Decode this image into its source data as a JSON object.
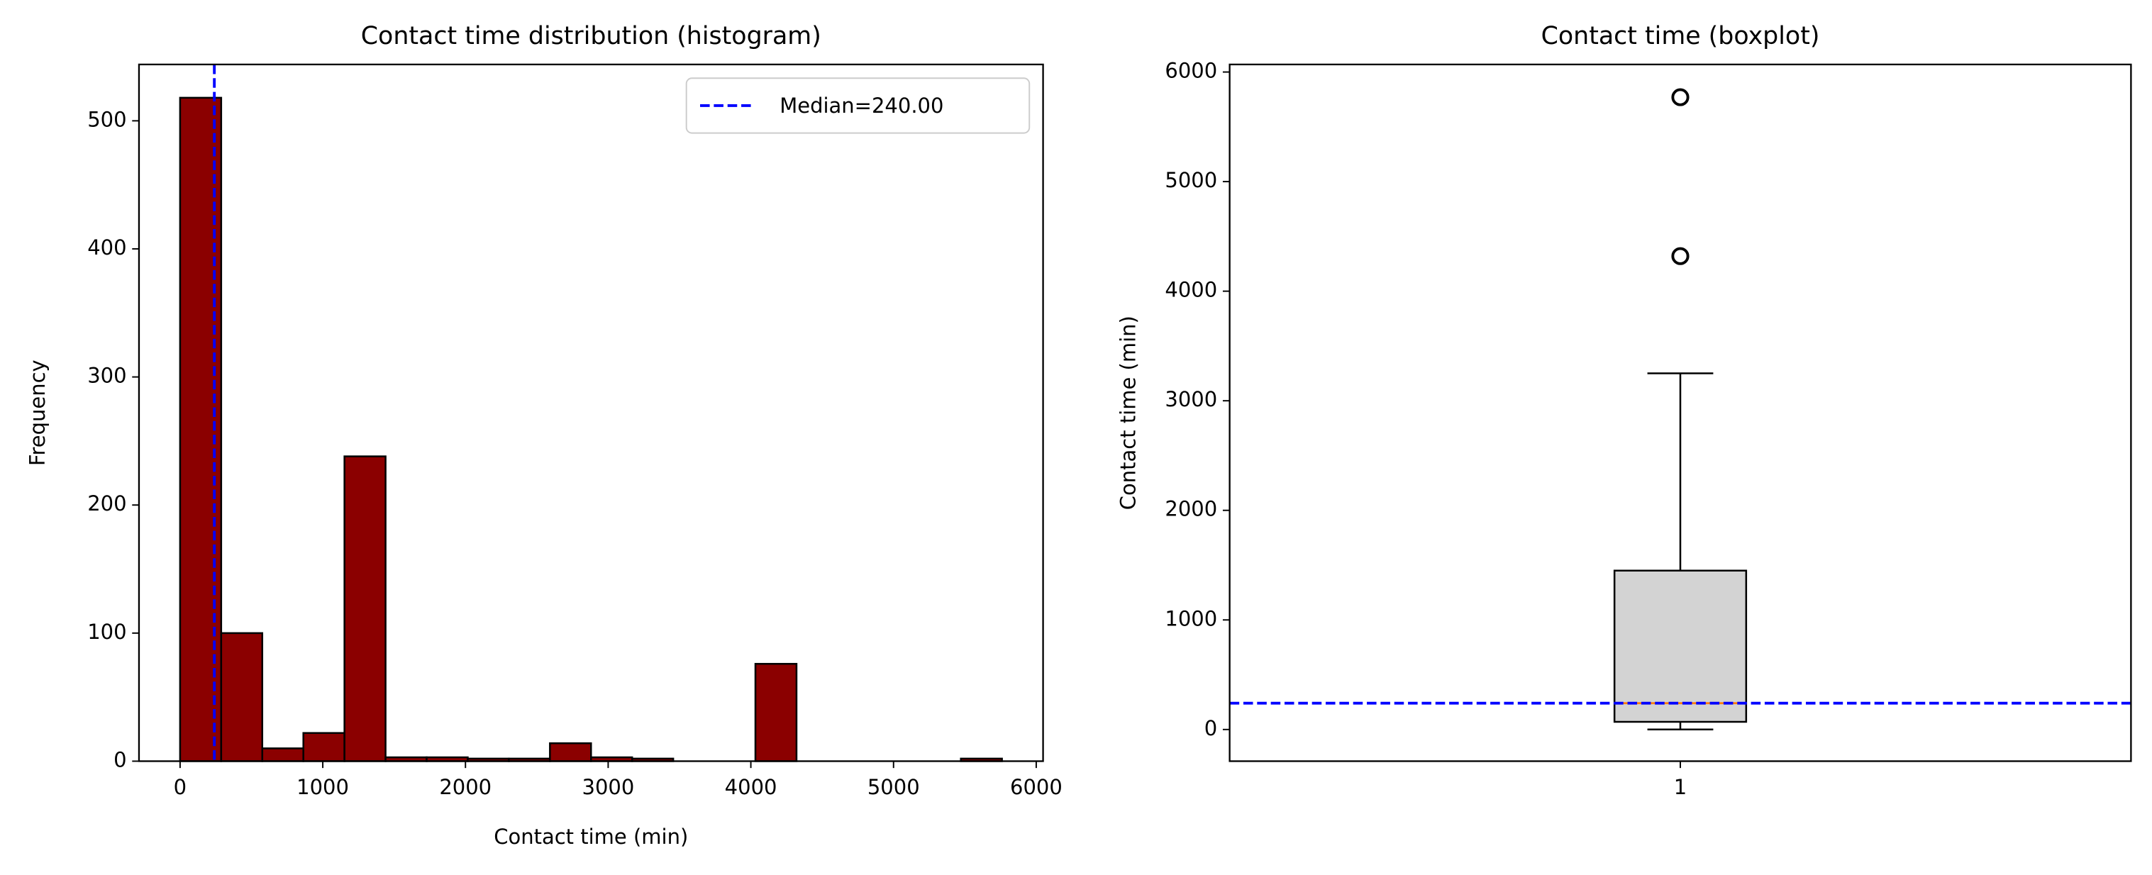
{
  "chart_data": [
    {
      "type": "histogram",
      "title": "Contact time distribution (histogram)",
      "xlabel": "Contact time (min)",
      "ylabel": "Frequency",
      "bins": [
        0,
        288,
        576,
        864,
        1152,
        1440,
        1728,
        2016,
        2304,
        2592,
        2880,
        3168,
        3456,
        3744,
        4032,
        4320,
        4608,
        4896,
        5184,
        5472,
        5760
      ],
      "counts": [
        518,
        100,
        10,
        22,
        238,
        3,
        3,
        2,
        2,
        14,
        3,
        2,
        0,
        0,
        76,
        0,
        0,
        0,
        0,
        2
      ],
      "color": "#8b0000",
      "edgecolor": "#000000",
      "xlim": [
        -288,
        6048
      ],
      "ylim": [
        0,
        544
      ],
      "xticks": [
        0,
        1000,
        2000,
        3000,
        4000,
        5000,
        6000
      ],
      "yticks": [
        0,
        100,
        200,
        300,
        400,
        500
      ],
      "vline": {
        "value": 240,
        "label": "Median=240.00",
        "color": "#0000ff"
      },
      "legend": "upper right"
    },
    {
      "type": "box",
      "title": "Contact time (boxplot)",
      "ylabel": "Contact time (min)",
      "categories": [
        "1"
      ],
      "boxes": [
        {
          "min": 0,
          "q1": 70,
          "median": 240,
          "q3": 1450,
          "max": 3250,
          "outliers": [
            4320,
            5770
          ]
        }
      ],
      "color": "#d3d3d3",
      "median_color": "#ff7f0e",
      "xlim": [
        0.5,
        1.5
      ],
      "ylim": [
        -289,
        6069
      ],
      "yticks": [
        0,
        1000,
        2000,
        3000,
        4000,
        5000,
        6000
      ],
      "hline": {
        "value": 240,
        "color": "#0000ff"
      }
    }
  ]
}
